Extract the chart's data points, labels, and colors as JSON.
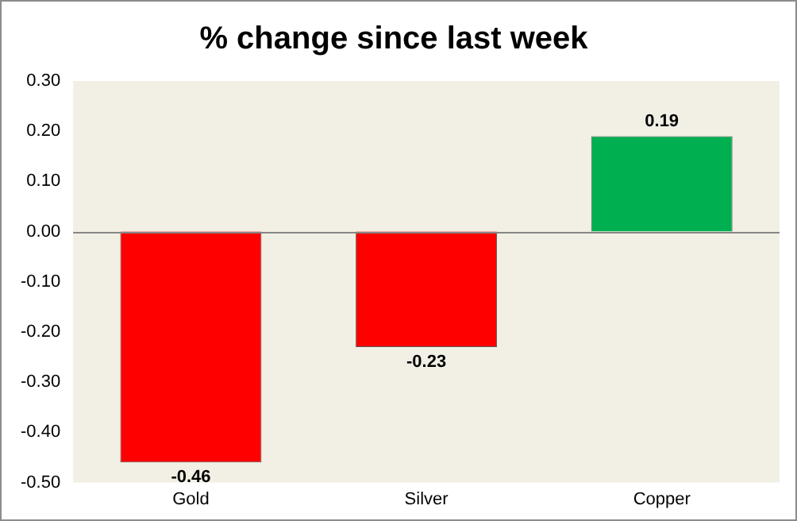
{
  "chart_data": {
    "type": "bar",
    "title": "% change since last week",
    "categories": [
      "Gold",
      "Silver",
      "Copper"
    ],
    "values": [
      -0.46,
      -0.23,
      0.19
    ],
    "colors": [
      "#ff0000",
      "#ff0000",
      "#00b050"
    ],
    "ylim": [
      -0.5,
      0.3
    ],
    "yticks": [
      {
        "value": -0.5,
        "label": "-0.50"
      },
      {
        "value": -0.4,
        "label": "-0.40"
      },
      {
        "value": -0.3,
        "label": "-0.30"
      },
      {
        "value": -0.2,
        "label": "-0.20"
      },
      {
        "value": -0.1,
        "label": "-0.10"
      },
      {
        "value": 0,
        "label": "0.00"
      },
      {
        "value": 0.1,
        "label": "0.10"
      },
      {
        "value": 0.2,
        "label": "0.20"
      },
      {
        "value": 0.3,
        "label": "0.30"
      }
    ],
    "ref_lines": [
      {
        "axis": "y",
        "value": 0,
        "color": "#868686"
      }
    ],
    "grid": false,
    "legend": false,
    "data_labels": true
  }
}
